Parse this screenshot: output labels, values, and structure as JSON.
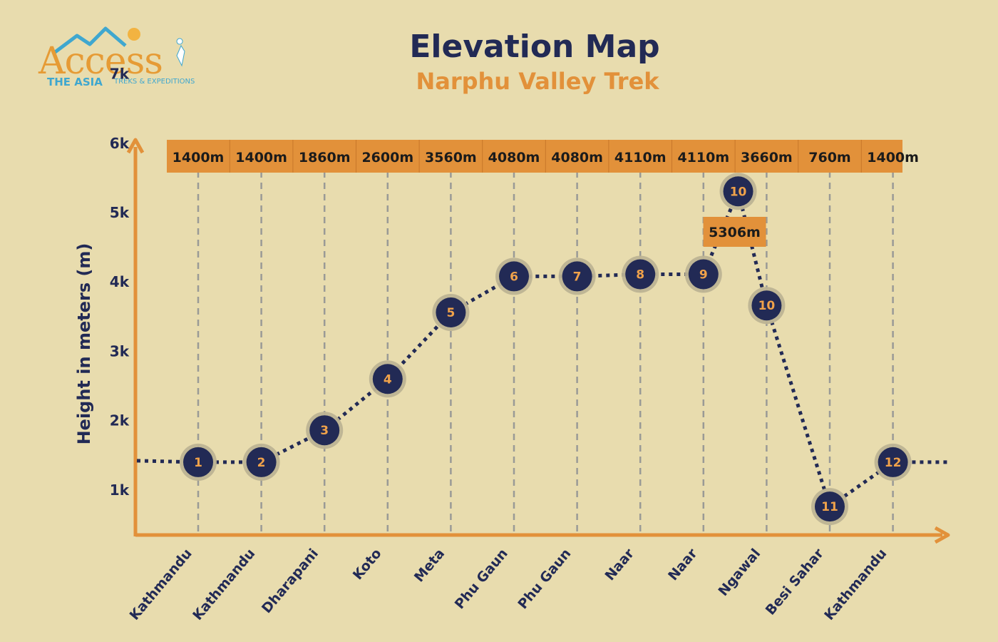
{
  "logo": {
    "word": "Access",
    "line2": "THE ASIA",
    "tagline": "TREKS & EXPEDITIONS"
  },
  "title": "Elevation Map",
  "subtitle": "Narphu Valley Trek",
  "colors": {
    "background": "#e8dcae",
    "accent": "#e2913a",
    "navy": "#222a55",
    "grid": "#9a9a96",
    "marker_text": "#f0a24a"
  },
  "chart_data": {
    "type": "line",
    "title": "Elevation Map",
    "subtitle": "Narphu Valley Trek",
    "ylabel": "Height in meters (m)",
    "xlabel": "",
    "ylim": [
      0,
      7000
    ],
    "yticks": [
      1000,
      2000,
      3000,
      4000,
      5000,
      6000,
      7000
    ],
    "ytick_labels": [
      "1k",
      "2k",
      "3k",
      "4k",
      "5k",
      "6k",
      "7k"
    ],
    "grid": "vertical dashed",
    "columns": [
      {
        "place": "Kathmandu",
        "elev_label": "1400m"
      },
      {
        "place": "Kathmandu",
        "elev_label": "1400m"
      },
      {
        "place": "Dharapani",
        "elev_label": "1860m"
      },
      {
        "place": "Koto",
        "elev_label": "2600m"
      },
      {
        "place": "Meta",
        "elev_label": "3560m"
      },
      {
        "place": "Phu Gaun",
        "elev_label": "4080m"
      },
      {
        "place": "Phu Gaun",
        "elev_label": "4080m"
      },
      {
        "place": "Naar",
        "elev_label": "4110m"
      },
      {
        "place": "Naar",
        "elev_label": "4110m"
      },
      {
        "place": "Ngawal",
        "elev_label": "3660m"
      },
      {
        "place": "Besi Sahar",
        "elev_label": "760m"
      },
      {
        "place": "Kathmandu",
        "elev_label": "1400m"
      }
    ],
    "points": [
      {
        "day": "1",
        "col": 0,
        "elevation": 1400
      },
      {
        "day": "2",
        "col": 1,
        "elevation": 1400
      },
      {
        "day": "3",
        "col": 2,
        "elevation": 1860
      },
      {
        "day": "4",
        "col": 3,
        "elevation": 2600
      },
      {
        "day": "5",
        "col": 4,
        "elevation": 3560
      },
      {
        "day": "6",
        "col": 5,
        "elevation": 4080
      },
      {
        "day": "7",
        "col": 6,
        "elevation": 4080
      },
      {
        "day": "8",
        "col": 7,
        "elevation": 4110
      },
      {
        "day": "9",
        "col": 8,
        "elevation": 4110
      },
      {
        "day": "10",
        "col": 8.55,
        "elevation": 5306
      },
      {
        "day": "10",
        "col": 9,
        "elevation": 3660
      },
      {
        "day": "11",
        "col": 10,
        "elevation": 760
      },
      {
        "day": "12",
        "col": 11,
        "elevation": 1400
      }
    ],
    "annotation": {
      "label": "5306m",
      "elevation": 5306
    }
  }
}
